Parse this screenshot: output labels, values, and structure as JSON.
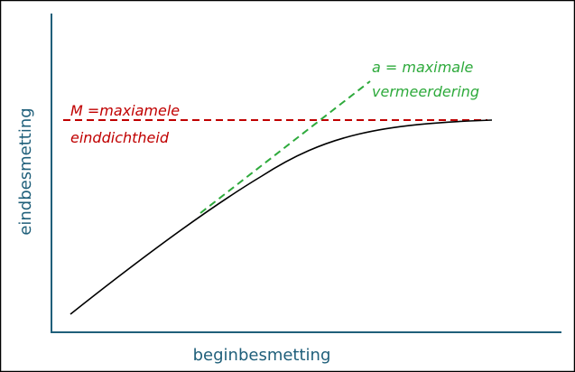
{
  "x_axis_label": "beginbesmetting",
  "y_axis_label": "eindbesmetting",
  "annotations": [
    {
      "lines": [
        "M =maxiamele",
        "einddichtheid"
      ]
    },
    {
      "lines": [
        "a = maximale",
        "vermeerdering"
      ]
    }
  ]
}
